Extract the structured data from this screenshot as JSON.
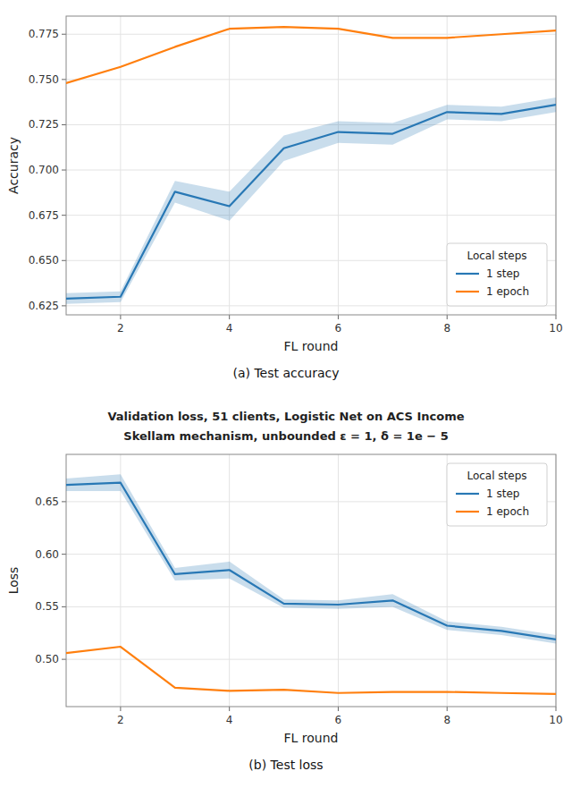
{
  "chart_data": [
    {
      "type": "line",
      "caption": "(a) Test accuracy",
      "x_label": "FL round",
      "y_label": "Accuracy",
      "x": [
        1,
        2,
        3,
        4,
        5,
        6,
        7,
        8,
        9,
        10
      ],
      "series": [
        {
          "name": "1 step",
          "color": "#2878b5",
          "values": [
            0.629,
            0.63,
            0.688,
            0.68,
            0.712,
            0.721,
            0.72,
            0.732,
            0.731,
            0.736
          ],
          "std": [
            0.003,
            0.003,
            0.006,
            0.008,
            0.007,
            0.006,
            0.006,
            0.004,
            0.004,
            0.004
          ]
        },
        {
          "name": "1 epoch",
          "color": "#ff7f0e",
          "values": [
            0.748,
            0.757,
            0.768,
            0.778,
            0.779,
            0.778,
            0.773,
            0.773,
            0.775,
            0.777
          ]
        }
      ],
      "xlim": [
        1,
        10
      ],
      "xticks": [
        2,
        4,
        6,
        8,
        10
      ],
      "ylim": [
        0.62,
        0.785
      ],
      "yticks": [
        0.625,
        {
          "value": 0.65,
          "label": "0.650"
        },
        0.675,
        {
          "value": 0.7,
          "label": "0.700"
        },
        0.725,
        {
          "value": 0.75,
          "label": "0.750"
        },
        0.775
      ],
      "grid": true,
      "legend": "lower right",
      "legend_title": "Local steps"
    },
    {
      "type": "line",
      "title": "Validation loss, 51 clients, Logistic Net on ACS Income",
      "subtitle": "Skellam mechanism, unbounded ε = 1, δ = 1e − 5",
      "caption": "(b) Test loss",
      "x_label": "FL round",
      "y_label": "Loss",
      "x": [
        1,
        2,
        3,
        4,
        5,
        6,
        7,
        8,
        9,
        10
      ],
      "series": [
        {
          "name": "1 step",
          "color": "#2878b5",
          "values": [
            0.666,
            0.668,
            0.581,
            0.585,
            0.553,
            0.552,
            0.556,
            0.532,
            0.527,
            0.519
          ],
          "std": [
            0.006,
            0.008,
            0.006,
            0.008,
            0.004,
            0.004,
            0.006,
            0.004,
            0.004,
            0.004
          ]
        },
        {
          "name": "1 epoch",
          "color": "#ff7f0e",
          "values": [
            0.506,
            0.512,
            0.473,
            0.47,
            0.471,
            0.468,
            0.469,
            0.469,
            0.468,
            0.467
          ]
        }
      ],
      "xlim": [
        1,
        10
      ],
      "xticks": [
        2,
        4,
        6,
        8,
        10
      ],
      "ylim": [
        0.455,
        0.695
      ],
      "yticks": [
        {
          "value": 0.5,
          "label": "0.50"
        },
        0.55,
        {
          "value": 0.6,
          "label": "0.60"
        },
        0.65
      ],
      "grid": true,
      "legend": "upper right",
      "legend_title": "Local steps"
    }
  ]
}
